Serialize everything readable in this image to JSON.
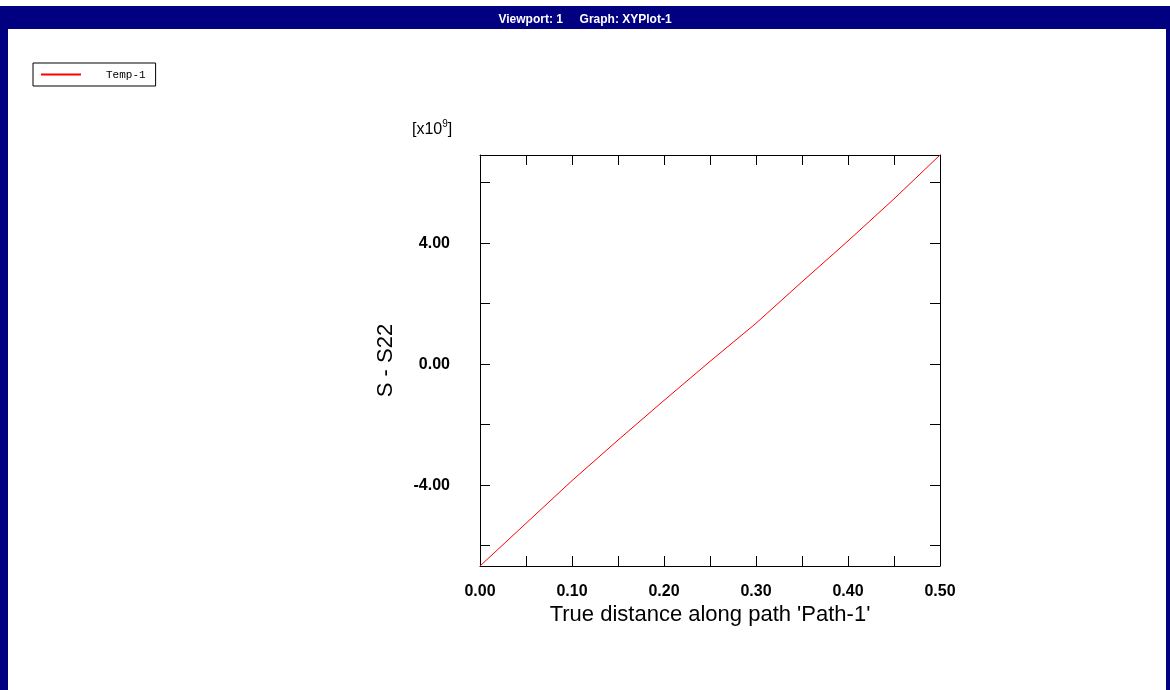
{
  "chart_data": {
    "type": "line",
    "title": "Viewport: 1     Graph: XYPlot-1",
    "xlabel": "True distance along path 'Path-1'",
    "ylabel": "S - S22",
    "annotations": [
      "[x10$^{9}$]"
    ],
    "x": [
      0,
      0.05,
      0.1,
      0.15,
      0.2,
      0.25,
      0.3,
      0.35,
      0.4,
      0.45,
      0.5
    ],
    "series": [
      {
        "name": "Temp-1",
        "color": "#ff0000",
        "values": [
          -6.68,
          -5.27,
          -3.86,
          -2.52,
          -1.21,
          0.08,
          1.34,
          2.71,
          4.06,
          5.45,
          6.9
        ]
      }
    ],
    "xlim": [
      0,
      0.5
    ],
    "xticks": [
      {
        "value": 0,
        "label": "0.00"
      },
      {
        "value": 0.05,
        "label": null
      },
      {
        "value": 0.1,
        "label": "0.10"
      },
      {
        "value": 0.15,
        "label": null
      },
      {
        "value": 0.2,
        "label": "0.20"
      },
      {
        "value": 0.25,
        "label": null
      },
      {
        "value": 0.3,
        "label": "0.30"
      },
      {
        "value": 0.35,
        "label": null
      },
      {
        "value": 0.4,
        "label": "0.40"
      },
      {
        "value": 0.45,
        "label": null
      },
      {
        "value": 0.5,
        "label": "0.50"
      }
    ],
    "ylim": [
      -6.68,
      6.9
    ],
    "yticks": [
      {
        "value": -6,
        "label": null
      },
      {
        "value": -4,
        "label": "-4.00"
      },
      {
        "value": -2,
        "label": null
      },
      {
        "value": 0,
        "label": "0.00"
      },
      {
        "value": 2,
        "label": null
      },
      {
        "value": 4,
        "label": "4.00"
      },
      {
        "value": 6,
        "label": null
      }
    ],
    "grid": false,
    "legend": "top left",
    "marker": "none",
    "line_style": "solid"
  }
}
